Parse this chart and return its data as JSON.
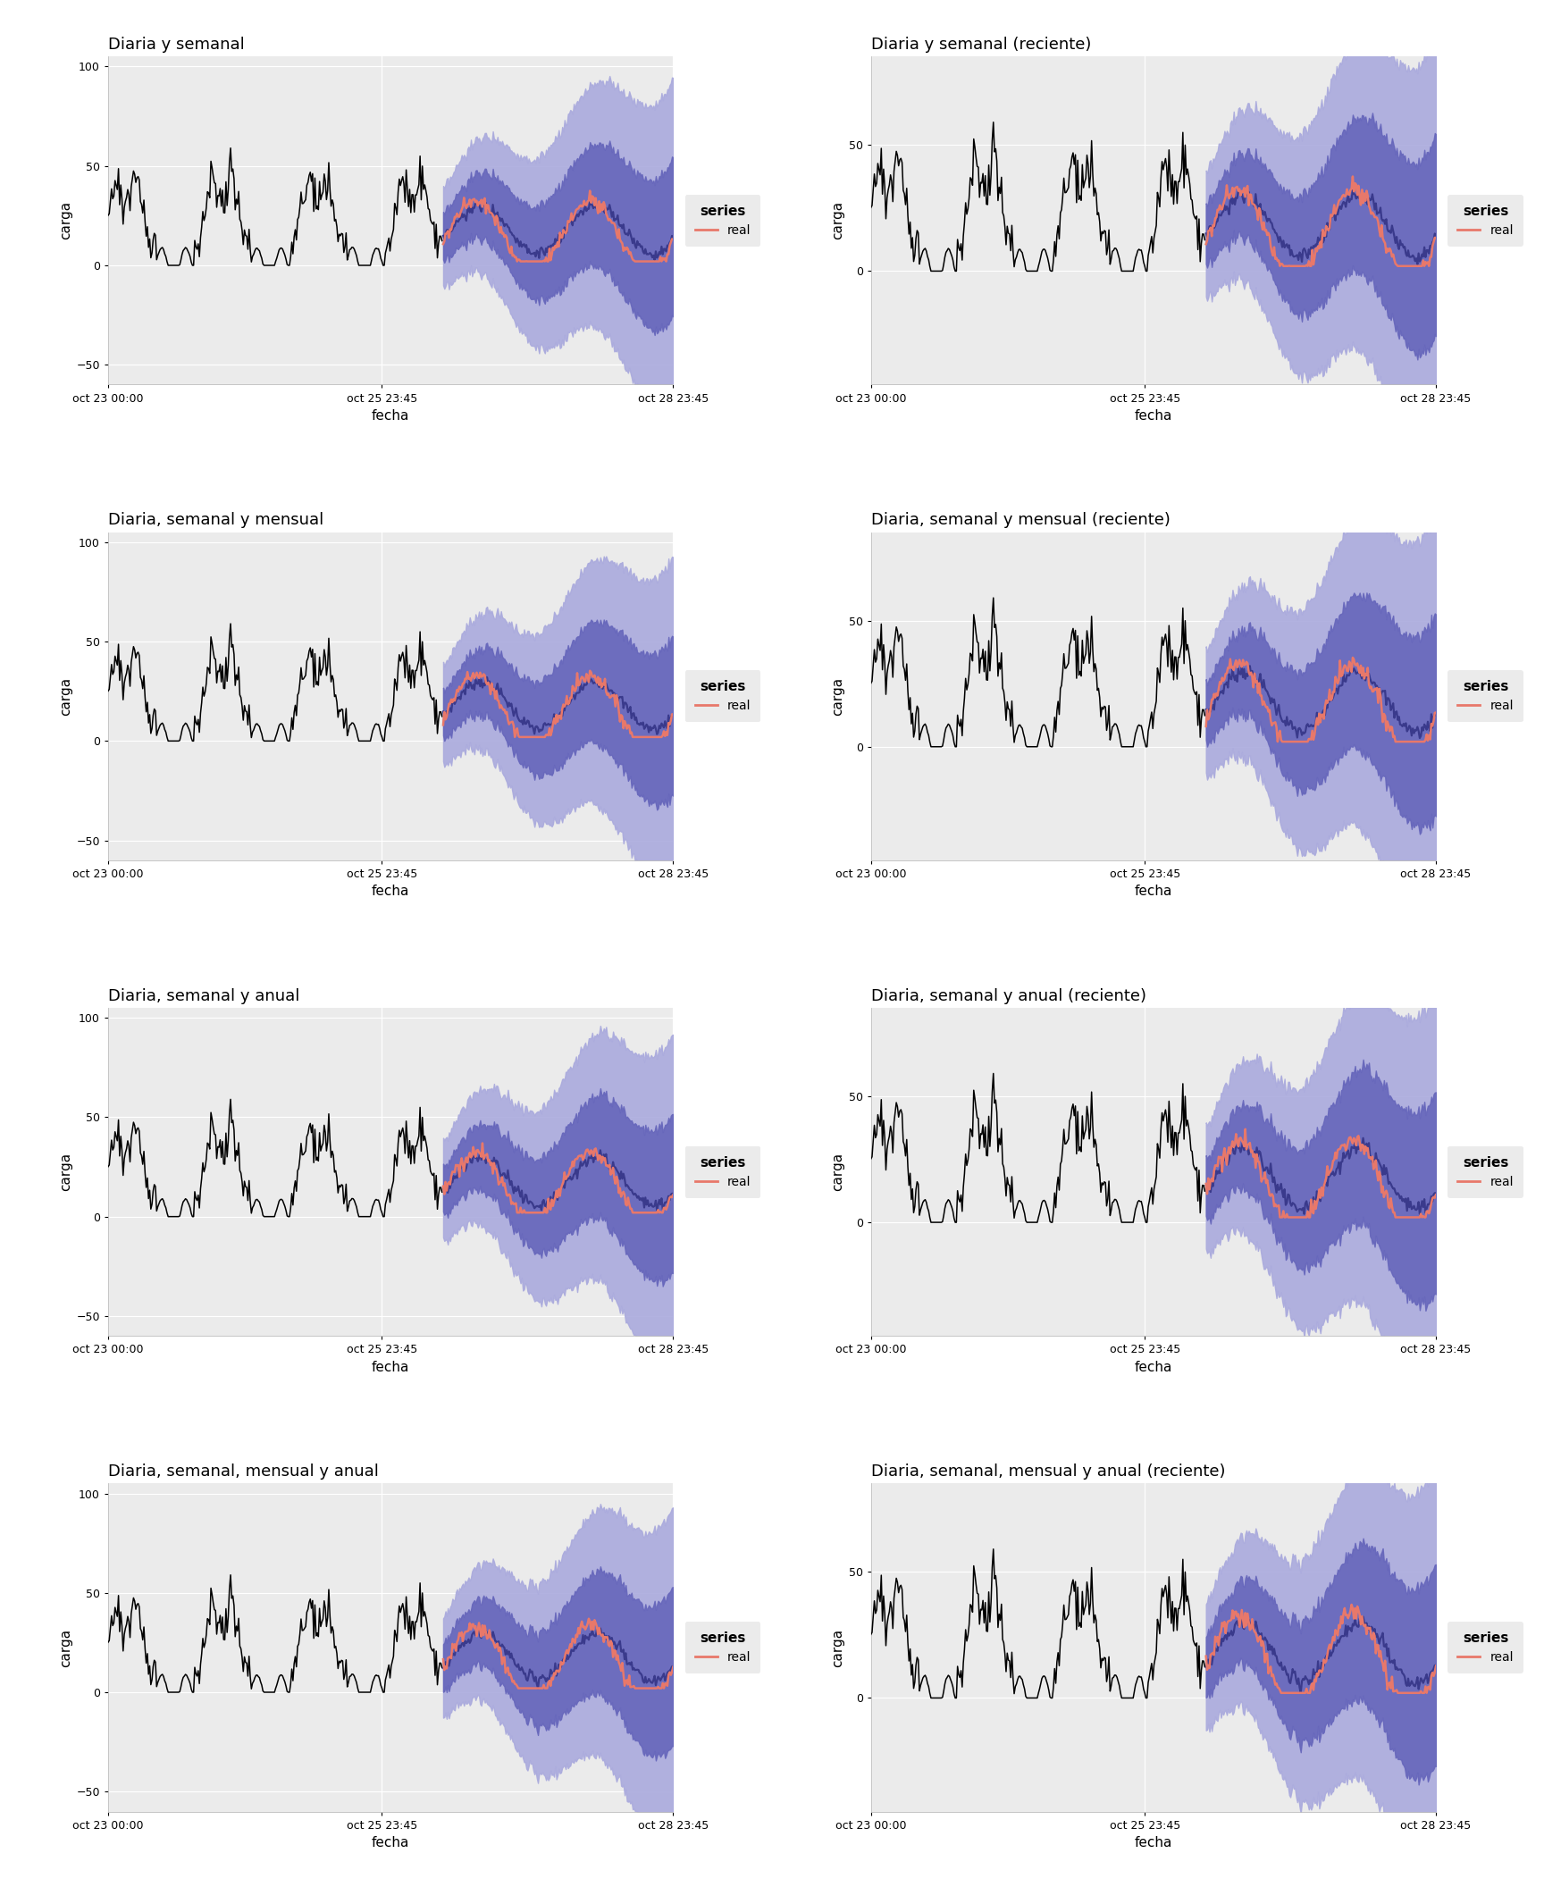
{
  "titles": [
    "Diaria y semanal",
    "Diaria y semanal (reciente)",
    "Diaria, semanal y mensual",
    "Diaria, semanal y mensual (reciente)",
    "Diaria, semanal y anual",
    "Diaria, semanal y anual (reciente)",
    "Diaria, semanal, mensual y anual",
    "Diaria, semanal, mensual y anual (reciente)"
  ],
  "xlabel": "fecha",
  "ylabel": "carga",
  "legend_title": "series",
  "legend_label": "real",
  "bg_color": "#ebebeb",
  "figure_bg": "#ffffff",
  "grid_color": "#ffffff",
  "history_color": "#000000",
  "forecast_line_color": "#3a3a8c",
  "real_line_color": "#e8786a",
  "band_inner_color": "#6666bb",
  "band_outer_color": "#aaaadd",
  "n_rows": 4,
  "n_cols": 2,
  "ylim_full": [
    -60,
    105
  ],
  "ylim_recent": [
    -45,
    85
  ],
  "yticks_full": [
    -50,
    0,
    50,
    100
  ],
  "yticks_recent": [
    0,
    50
  ],
  "xtick_labels": [
    "oct 23 00:00",
    "oct 25 23:45",
    "oct 28 23:45"
  ]
}
